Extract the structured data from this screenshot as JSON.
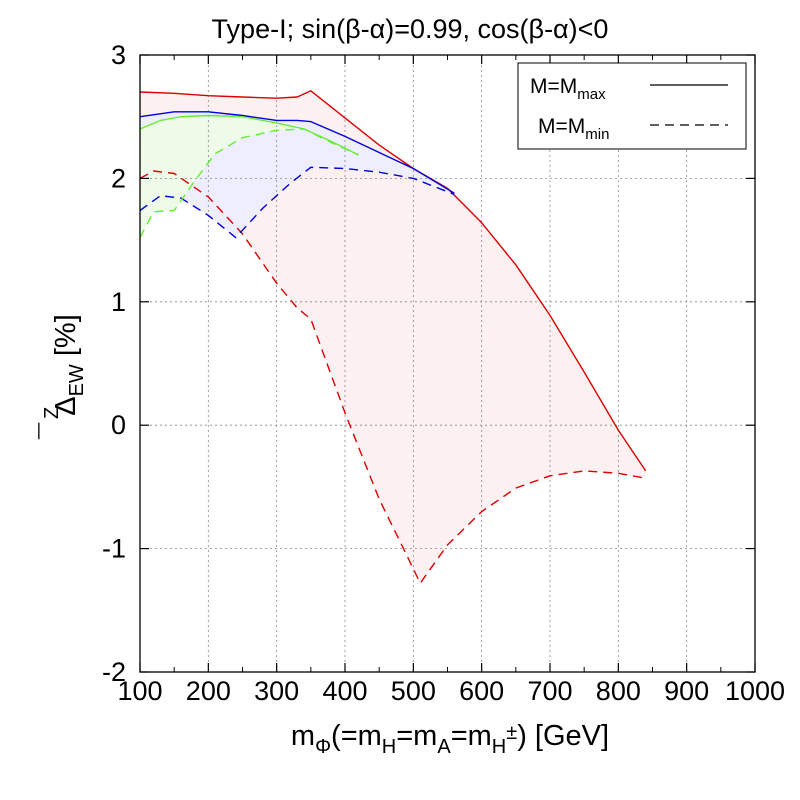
{
  "chart_data": {
    "type": "line",
    "title": "Type-I; sin(β-α)=0.99, cos(β-α)<0",
    "xlabel": {
      "main": "m",
      "sub": "Φ",
      "paren_open": "(=m",
      "sub_h": "H",
      "eq1": "=m",
      "sub_a": "A",
      "eq2": "=m",
      "sub_hpm": "H",
      "sup_pm": "±",
      "close": ") [GeV]"
    },
    "ylabel": {
      "main": "Δ",
      "bar": "¯",
      "sup": "Z",
      "sub": "EW",
      "unit": " [%]"
    },
    "xlim": [
      100,
      1000
    ],
    "ylim": [
      -2,
      3
    ],
    "xticks": [
      100,
      200,
      300,
      400,
      500,
      600,
      700,
      800,
      900,
      1000
    ],
    "yticks": [
      -2,
      -1,
      0,
      1,
      2,
      3
    ],
    "grid": true,
    "legend_position": "top-right",
    "legend": [
      {
        "label": "M=M",
        "sub": "max",
        "style": "solid"
      },
      {
        "label": "M=M",
        "sub": "min",
        "style": "dashed"
      }
    ],
    "series": [
      {
        "name": "red M=M_max",
        "color": "#dd0000",
        "style": "solid",
        "points": [
          [
            100,
            2.7
          ],
          [
            150,
            2.69
          ],
          [
            200,
            2.67
          ],
          [
            250,
            2.66
          ],
          [
            300,
            2.65
          ],
          [
            330,
            2.66
          ],
          [
            350,
            2.71
          ],
          [
            400,
            2.49
          ],
          [
            450,
            2.27
          ],
          [
            500,
            2.08
          ],
          [
            550,
            1.92
          ],
          [
            600,
            1.64
          ],
          [
            650,
            1.3
          ],
          [
            700,
            0.89
          ],
          [
            750,
            0.43
          ],
          [
            800,
            -0.04
          ],
          [
            840,
            -0.37
          ]
        ]
      },
      {
        "name": "red M=M_min",
        "color": "#dd0000",
        "style": "dashed",
        "points": [
          [
            100,
            2.0
          ],
          [
            120,
            2.06
          ],
          [
            150,
            2.04
          ],
          [
            200,
            1.85
          ],
          [
            250,
            1.55
          ],
          [
            300,
            1.15
          ],
          [
            330,
            0.95
          ],
          [
            350,
            0.86
          ],
          [
            400,
            0.1
          ],
          [
            450,
            -0.6
          ],
          [
            490,
            -1.05
          ],
          [
            510,
            -1.28
          ],
          [
            550,
            -0.97
          ],
          [
            600,
            -0.7
          ],
          [
            650,
            -0.51
          ],
          [
            700,
            -0.41
          ],
          [
            750,
            -0.37
          ],
          [
            800,
            -0.39
          ],
          [
            840,
            -0.43
          ]
        ]
      },
      {
        "name": "blue M=M_max",
        "color": "#0000dd",
        "style": "solid",
        "points": [
          [
            100,
            2.5
          ],
          [
            150,
            2.54
          ],
          [
            200,
            2.54
          ],
          [
            250,
            2.51
          ],
          [
            300,
            2.47
          ],
          [
            330,
            2.47
          ],
          [
            350,
            2.46
          ],
          [
            400,
            2.34
          ],
          [
            450,
            2.21
          ],
          [
            500,
            2.08
          ],
          [
            560,
            1.88
          ]
        ]
      },
      {
        "name": "blue M=M_min",
        "color": "#0000dd",
        "style": "dashed",
        "points": [
          [
            100,
            1.74
          ],
          [
            130,
            1.86
          ],
          [
            160,
            1.84
          ],
          [
            200,
            1.7
          ],
          [
            240,
            1.52
          ],
          [
            280,
            1.76
          ],
          [
            320,
            1.96
          ],
          [
            350,
            2.09
          ],
          [
            400,
            2.08
          ],
          [
            450,
            2.05
          ],
          [
            500,
            2.0
          ],
          [
            560,
            1.87
          ]
        ]
      },
      {
        "name": "green M=M_max",
        "color": "#66ee33",
        "style": "solid",
        "points": [
          [
            100,
            2.4
          ],
          [
            130,
            2.47
          ],
          [
            160,
            2.5
          ],
          [
            200,
            2.51
          ],
          [
            250,
            2.5
          ],
          [
            300,
            2.45
          ],
          [
            340,
            2.4
          ],
          [
            380,
            2.3
          ],
          [
            420,
            2.19
          ]
        ]
      },
      {
        "name": "green M=M_min",
        "color": "#66ee33",
        "style": "dashed",
        "points": [
          [
            100,
            1.52
          ],
          [
            120,
            1.73
          ],
          [
            150,
            1.74
          ],
          [
            180,
            1.98
          ],
          [
            210,
            2.2
          ],
          [
            250,
            2.33
          ],
          [
            300,
            2.39
          ],
          [
            340,
            2.4
          ],
          [
            380,
            2.29
          ],
          [
            420,
            2.19
          ]
        ]
      }
    ],
    "bands": [
      {
        "name": "red band",
        "fill": "#fdf0f0",
        "upper": "red M=M_max",
        "lower": "red M=M_min"
      },
      {
        "name": "blue band",
        "fill": "#eeeeff",
        "upper": "blue M=M_max",
        "lower": "blue M=M_min"
      },
      {
        "name": "green band",
        "fill": "#eefbe8",
        "upper": "green M=M_max",
        "lower": "green M=M_min"
      }
    ]
  }
}
